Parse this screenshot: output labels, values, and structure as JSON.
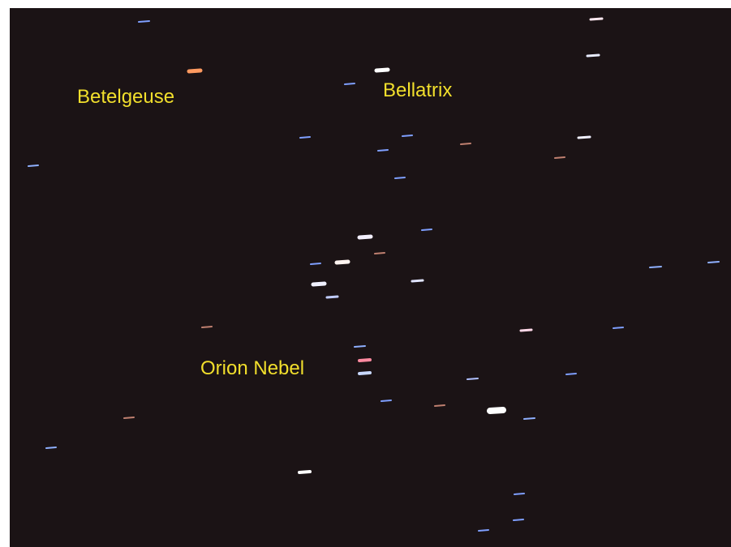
{
  "labels": [
    "Betelgeuse",
    "Bellatrix",
    "Orion Nebel"
  ]
}
